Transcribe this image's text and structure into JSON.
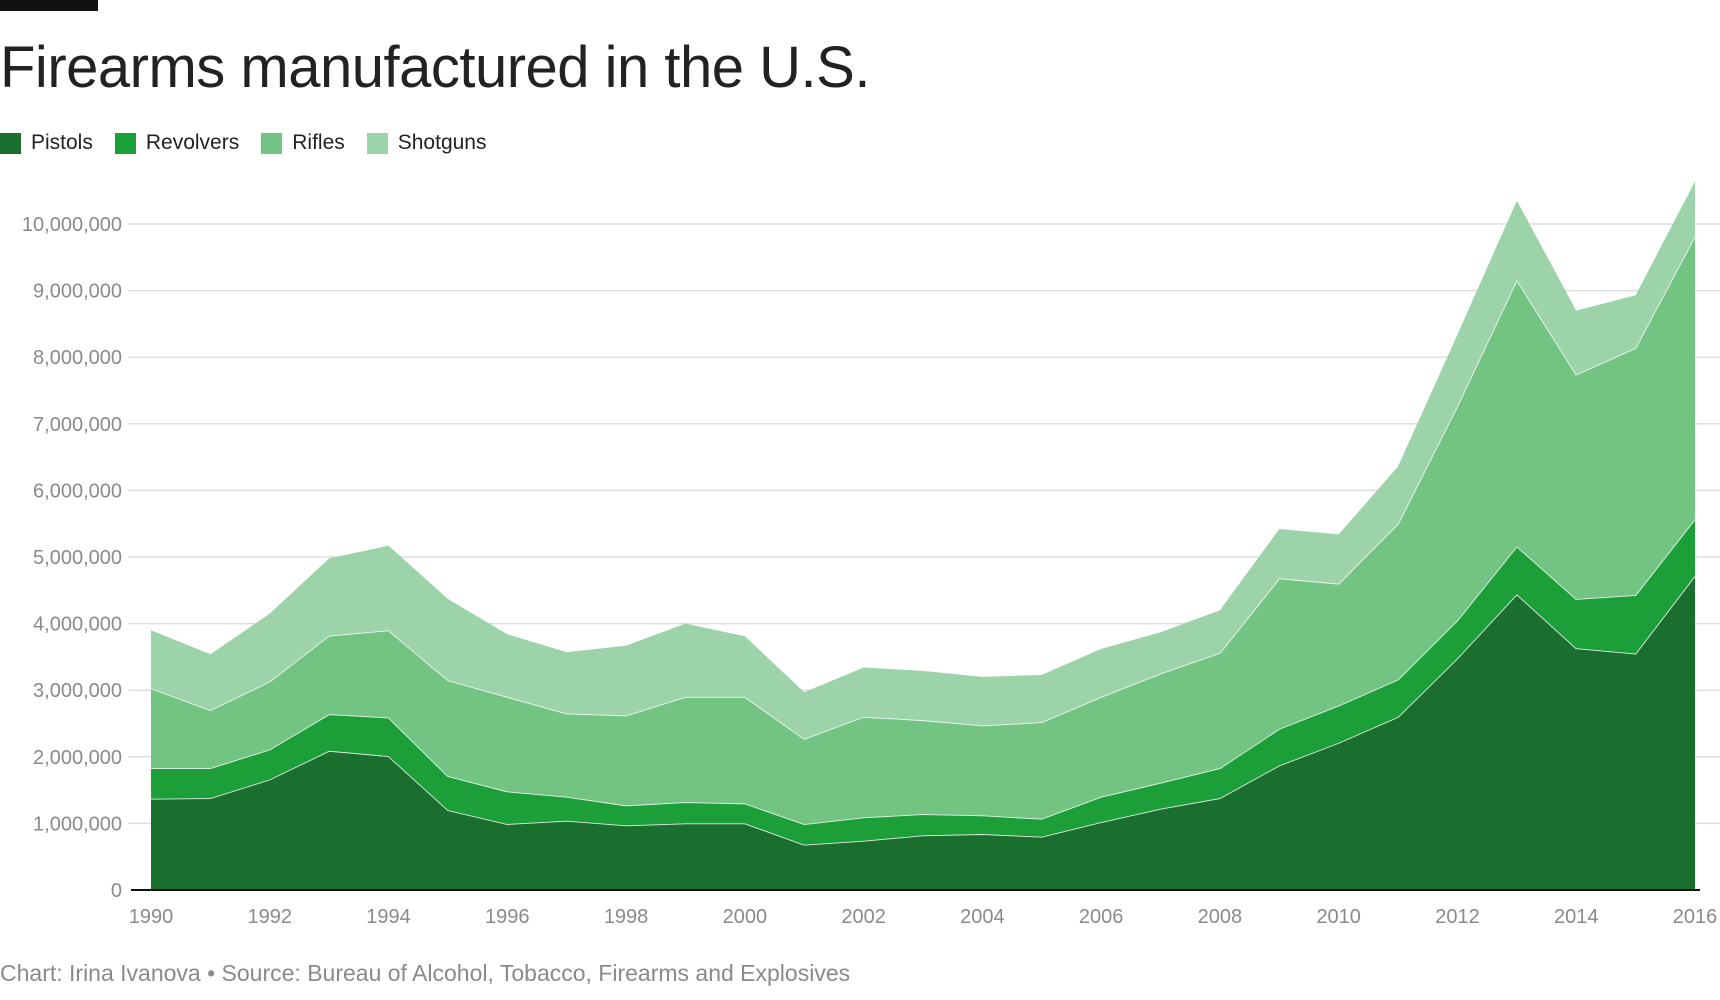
{
  "chart_data": {
    "type": "area",
    "stacked": true,
    "title": "Firearms manufactured in the U.S.",
    "xlabel": "",
    "ylabel": "",
    "x": [
      1990,
      1991,
      1992,
      1993,
      1994,
      1995,
      1996,
      1997,
      1998,
      1999,
      2000,
      2001,
      2002,
      2003,
      2004,
      2005,
      2006,
      2007,
      2008,
      2009,
      2010,
      2011,
      2012,
      2013,
      2014,
      2015,
      2016
    ],
    "xlim": [
      1990,
      2016
    ],
    "ylim": [
      0,
      10650000
    ],
    "x_ticks": [
      "1990",
      "1992",
      "1994",
      "1996",
      "1998",
      "2000",
      "2002",
      "2004",
      "2006",
      "2008",
      "2010",
      "2012",
      "2014",
      "2016"
    ],
    "y_ticks": [
      "0",
      "1,000,000",
      "2,000,000",
      "3,000,000",
      "4,000,000",
      "5,000,000",
      "6,000,000",
      "7,000,000",
      "8,000,000",
      "9,000,000",
      "10,000,000"
    ],
    "grid": "horizontal",
    "legend_placement": "top-left",
    "series": [
      {
        "name": "Pistols",
        "color": "#1a6e2e",
        "values": [
          1370000,
          1380000,
          1660000,
          2090000,
          2010000,
          1200000,
          990000,
          1040000,
          970000,
          1000000,
          1000000,
          680000,
          740000,
          820000,
          840000,
          800000,
          1020000,
          1220000,
          1380000,
          1870000,
          2210000,
          2600000,
          3480000,
          4440000,
          3630000,
          3550000,
          4720000
        ]
      },
      {
        "name": "Revolvers",
        "color": "#1c9e39",
        "values": [
          460000,
          450000,
          450000,
          550000,
          580000,
          510000,
          490000,
          360000,
          300000,
          320000,
          300000,
          310000,
          350000,
          320000,
          280000,
          270000,
          380000,
          390000,
          450000,
          550000,
          560000,
          560000,
          570000,
          720000,
          740000,
          880000,
          850000
        ]
      },
      {
        "name": "Rifles",
        "color": "#73c383",
        "values": [
          1200000,
          870000,
          1020000,
          1180000,
          1310000,
          1440000,
          1420000,
          1250000,
          1350000,
          1580000,
          1600000,
          1280000,
          1510000,
          1410000,
          1350000,
          1450000,
          1500000,
          1640000,
          1730000,
          2260000,
          1830000,
          2340000,
          3220000,
          4000000,
          3370000,
          3710000,
          4250000
        ]
      },
      {
        "name": "Shotguns",
        "color": "#9dd3a8",
        "values": [
          870000,
          840000,
          1020000,
          1160000,
          1270000,
          1220000,
          940000,
          920000,
          1050000,
          1100000,
          910000,
          700000,
          740000,
          740000,
          730000,
          710000,
          720000,
          620000,
          640000,
          740000,
          740000,
          860000,
          1070000,
          1190000,
          960000,
          790000,
          820000
        ]
      }
    ]
  },
  "footer": "Chart: Irina Ivanova • Source: Bureau of Alcohol, Tobacco, Firearms and Explosives"
}
